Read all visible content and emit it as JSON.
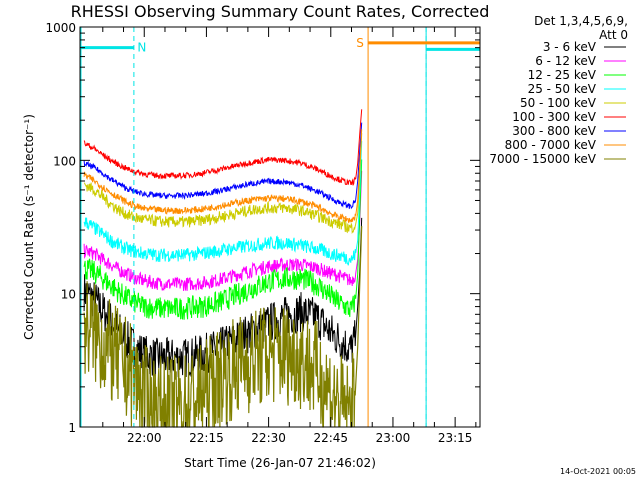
{
  "chart_data": {
    "type": "line",
    "title": "RHESSI Observing Summary Count Rates, Corrected",
    "xlabel": "Start Time (26-Jan-07 21:46:02)",
    "ylabel": "Corrected Count Rate (s⁻¹ detector⁻¹)",
    "yscale": "log",
    "ylim": [
      1,
      1000
    ],
    "xlim_minutes_after_start": [
      -1.5,
      95
    ],
    "y_ticks": [
      {
        "value": 1,
        "label": "1"
      },
      {
        "value": 10,
        "label": "10"
      },
      {
        "value": 100,
        "label": "100"
      },
      {
        "value": 1000,
        "label": "1000"
      }
    ],
    "x_ticks": [
      {
        "value": 14,
        "label": "22:00"
      },
      {
        "value": 29,
        "label": "22:15"
      },
      {
        "value": 44,
        "label": "22:30"
      },
      {
        "value": 59,
        "label": "22:45"
      },
      {
        "value": 74,
        "label": "23:00"
      },
      {
        "value": 89,
        "label": "23:15"
      }
    ],
    "legend_header": [
      "Det 1,3,4,5,6,9,",
      "Att 0"
    ],
    "legend_position": "right",
    "flags": [
      {
        "label": "N",
        "color": "#00e5e5",
        "start": -1.5,
        "end": 11.5,
        "level": 700
      },
      {
        "label": "S",
        "color": "#ff8c00",
        "start": 68,
        "end": 95,
        "level": 760
      },
      {
        "label": "",
        "color": "#00e5e5",
        "start": 82,
        "end": 95,
        "level": 680
      }
    ],
    "night_boundaries": [
      11.5,
      82,
      95
    ],
    "saa_boundary": 68,
    "series": [
      {
        "name": "3 - 6 keV",
        "color": "#000000",
        "x": [
          -0.5,
          2,
          4,
          6,
          8,
          10,
          12,
          14,
          17,
          20,
          24,
          28,
          32,
          36,
          40,
          44,
          48,
          52,
          56,
          58,
          60,
          62,
          63,
          64,
          65,
          65.5,
          66,
          66.5
        ],
        "y": [
          10.5,
          9,
          7.5,
          6.2,
          5.2,
          4.4,
          3.9,
          3.5,
          3.3,
          3.3,
          3.3,
          3.5,
          3.9,
          4.5,
          5.2,
          6,
          6.8,
          7.3,
          6.5,
          5.5,
          4.8,
          4.3,
          4,
          3.8,
          4.8,
          8,
          15,
          40
        ]
      },
      {
        "name": "6 - 12 keV",
        "color": "#ff00ff",
        "x": [
          -0.5,
          2,
          4,
          6,
          8,
          10,
          12,
          14,
          17,
          20,
          24,
          28,
          32,
          36,
          40,
          44,
          48,
          52,
          56,
          58,
          60,
          62,
          63,
          64,
          65,
          65.5,
          66,
          66.5
        ],
        "y": [
          21,
          20,
          18,
          16.5,
          15,
          14,
          13,
          12.5,
          12,
          11.8,
          11.8,
          12,
          12.7,
          13.8,
          15,
          16,
          16.5,
          16.5,
          15.5,
          14.5,
          14,
          13.2,
          12.8,
          12.5,
          14,
          18,
          35,
          90
        ]
      },
      {
        "name": "12 - 25 keV",
        "color": "#00ff00",
        "x": [
          -0.5,
          2,
          4,
          6,
          8,
          10,
          12,
          14,
          17,
          20,
          24,
          28,
          32,
          36,
          40,
          44,
          48,
          52,
          56,
          58,
          60,
          62,
          63,
          64,
          65,
          65.5,
          66,
          66.5
        ],
        "y": [
          15.5,
          14.5,
          13,
          11.5,
          10.2,
          9.2,
          8.5,
          8,
          7.8,
          7.7,
          7.8,
          8,
          8.6,
          9.7,
          11,
          12.3,
          13,
          13,
          11.5,
          10.2,
          9,
          8.2,
          7.8,
          7.5,
          9,
          14,
          40,
          110
        ]
      },
      {
        "name": "25 - 50 keV",
        "color": "#00ffff",
        "x": [
          -0.5,
          2,
          4,
          6,
          8,
          10,
          12,
          14,
          17,
          20,
          24,
          28,
          32,
          36,
          40,
          44,
          48,
          52,
          56,
          58,
          60,
          62,
          63,
          64,
          65,
          65.5,
          66,
          66.5
        ],
        "y": [
          35,
          31,
          28,
          25,
          23,
          21.5,
          20.5,
          20,
          19.5,
          19.5,
          19.5,
          20,
          21,
          22,
          23,
          24,
          24,
          23,
          21.5,
          20.5,
          19.5,
          19,
          18.5,
          18,
          20,
          25,
          60,
          150
        ]
      },
      {
        "name": "50 - 100 keV",
        "color": "#cccc00",
        "x": [
          -0.5,
          2,
          4,
          6,
          8,
          10,
          12,
          14,
          17,
          20,
          24,
          28,
          32,
          36,
          40,
          44,
          48,
          52,
          56,
          58,
          60,
          62,
          63,
          64,
          65,
          65.5,
          66,
          66.5
        ],
        "y": [
          66,
          60,
          53,
          47,
          42,
          39,
          37,
          36,
          35,
          34.5,
          34.5,
          35.5,
          37.5,
          40,
          42.5,
          44,
          44,
          42,
          38,
          36,
          34,
          32.5,
          31.5,
          31,
          33,
          40,
          80,
          170
        ]
      },
      {
        "name": "100 - 300 keV",
        "color": "#ff0000",
        "x": [
          -0.5,
          2,
          4,
          6,
          8,
          10,
          12,
          14,
          17,
          20,
          24,
          28,
          32,
          36,
          40,
          44,
          48,
          52,
          56,
          58,
          60,
          62,
          63,
          64,
          65,
          65.5,
          66,
          66.5
        ],
        "y": [
          135,
          122,
          110,
          100,
          92,
          86,
          82,
          79,
          77,
          76.5,
          77,
          80,
          85,
          91,
          97,
          101,
          100,
          95,
          85,
          79,
          74,
          70,
          68,
          67,
          72,
          95,
          160,
          250
        ]
      },
      {
        "name": "300 - 800 keV",
        "color": "#0000ff",
        "x": [
          -0.5,
          2,
          4,
          6,
          8,
          10,
          12,
          14,
          17,
          20,
          24,
          28,
          32,
          36,
          40,
          44,
          48,
          52,
          56,
          58,
          60,
          62,
          63,
          64,
          65,
          65.5,
          66,
          66.5
        ],
        "y": [
          95,
          88,
          80,
          72,
          66,
          61,
          58,
          56,
          54.5,
          54,
          54.5,
          56,
          59,
          63,
          67,
          69.5,
          69,
          65,
          58,
          54,
          50,
          47,
          46,
          45,
          50,
          70,
          120,
          200
        ]
      },
      {
        "name": "800 - 7000 keV",
        "color": "#ff8c00",
        "x": [
          -0.5,
          2,
          4,
          6,
          8,
          10,
          12,
          14,
          17,
          20,
          24,
          28,
          32,
          36,
          40,
          44,
          48,
          52,
          56,
          58,
          60,
          62,
          63,
          64,
          65,
          65.5,
          66,
          66.5
        ],
        "y": [
          78,
          70,
          63,
          57,
          52,
          48,
          45,
          43.5,
          42.5,
          42,
          42,
          43,
          45.5,
          48,
          50.5,
          52,
          51.5,
          49,
          44.5,
          41.5,
          38.5,
          37,
          36,
          35.5,
          38,
          50,
          95,
          180
        ]
      },
      {
        "name": "7000 - 15000 keV",
        "color": "#808000",
        "x": [
          -0.5,
          2,
          4,
          6,
          8,
          10,
          12,
          14,
          17,
          20,
          24,
          28,
          32,
          36,
          40,
          44,
          48,
          52,
          56,
          58,
          60,
          62,
          63,
          64,
          65,
          65.5,
          66,
          66.5
        ],
        "y": [
          5.8,
          5,
          4.2,
          3.6,
          3.1,
          2.7,
          2.2,
          1.7,
          1.4,
          1.4,
          1.5,
          1.8,
          2.3,
          2.8,
          3.2,
          3.5,
          3.6,
          3.3,
          2.5,
          2,
          1.6,
          1.4,
          1.3,
          1.3,
          2,
          4,
          12,
          35
        ]
      }
    ]
  },
  "footer": {
    "timestamp": "14-Oct-2021 00:05"
  }
}
